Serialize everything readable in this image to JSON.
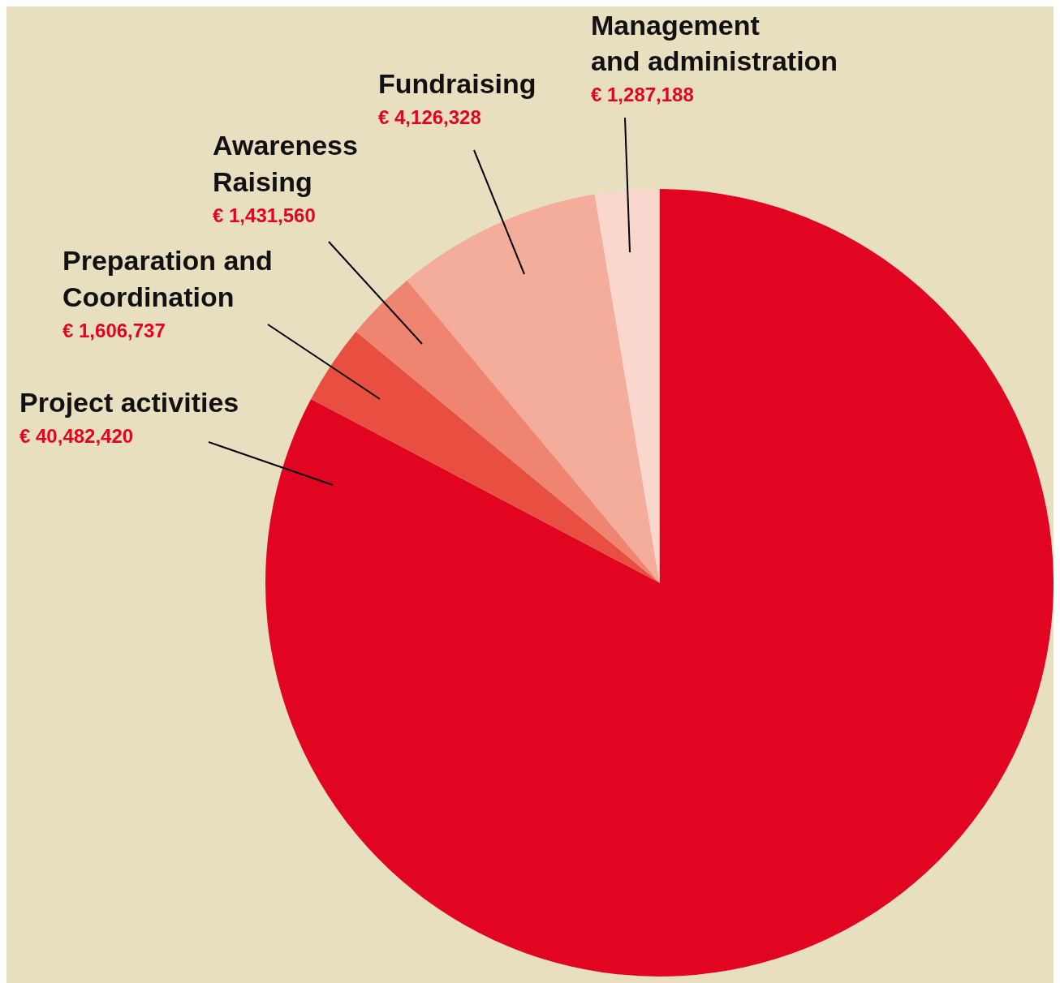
{
  "chart_data": {
    "type": "pie",
    "categories": [
      "Project activities",
      "Preparation and Coordination",
      "Awareness Raising",
      "Fundraising",
      "Management and administration"
    ],
    "values": [
      40482420,
      1606737,
      1431560,
      4126328,
      1287188
    ],
    "value_labels": [
      "€ 40,482,420",
      "€ 1,606,737",
      "€ 1,431,560",
      "€ 4,126,328",
      "€ 1,287,188"
    ],
    "colors": [
      "#e10521",
      "#e84f40",
      "#ef8470",
      "#f5ad9b",
      "#fad7cc"
    ],
    "legend": false
  }
}
